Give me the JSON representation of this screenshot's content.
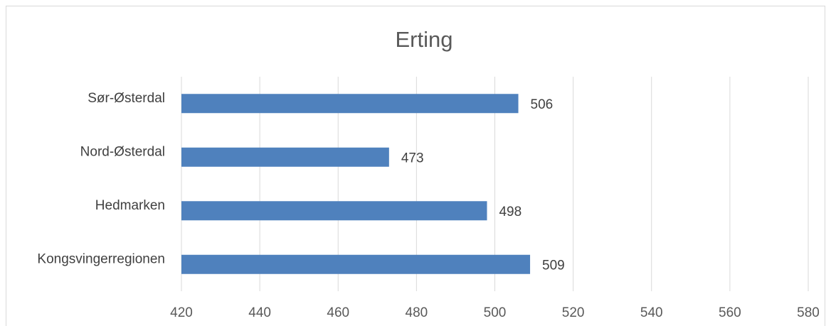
{
  "chart_data": {
    "type": "bar",
    "orientation": "horizontal",
    "title": "Erting",
    "xlabel": "",
    "ylabel": "",
    "categories": [
      "Kongsvingerregionen",
      "Hedmarken",
      "Nord-Østerdal",
      "Sør-Østerdal"
    ],
    "values": [
      509,
      498,
      473,
      506
    ],
    "data_labels": [
      "509",
      "498",
      "473",
      "506"
    ],
    "xlim": [
      420,
      580
    ],
    "x_ticks": [
      420,
      440,
      460,
      480,
      500,
      520,
      540,
      560,
      580
    ],
    "x_tick_labels": [
      "420",
      "440",
      "460",
      "480",
      "500",
      "520",
      "540",
      "560",
      "580"
    ],
    "grid": true,
    "legend": "none",
    "bar_color": "#4f81bd"
  }
}
